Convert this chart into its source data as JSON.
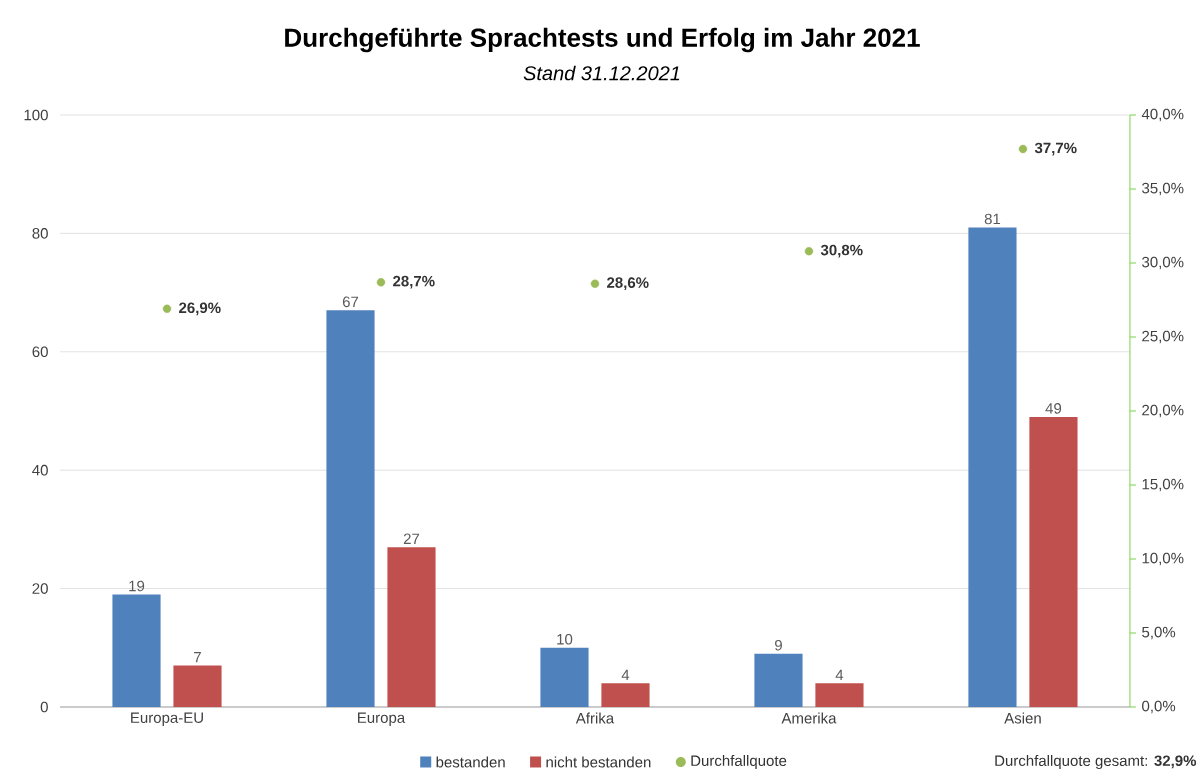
{
  "chart_data": {
    "type": "bar",
    "title": "Durchgeführte Sprachtests und Erfolg im Jahr 2021",
    "subtitle": "Stand 31.12.2021",
    "categories": [
      "Europa-EU",
      "Europa",
      "Afrika",
      "Amerika",
      "Asien"
    ],
    "series": [
      {
        "name": "bestanden",
        "color": "#4f81bd",
        "values": [
          19,
          67,
          10,
          9,
          81
        ],
        "value_labels": [
          "19",
          "67",
          "10",
          "9",
          "81"
        ]
      },
      {
        "name": "nicht bestanden",
        "color": "#c0504d",
        "values": [
          7,
          27,
          4,
          4,
          49
        ],
        "value_labels": [
          "7",
          "27",
          "4",
          "4",
          "49"
        ]
      },
      {
        "name": "Durchfallquote",
        "type": "scatter",
        "axis": "y2",
        "color": "#9bbb59",
        "values": [
          26.9,
          28.7,
          28.6,
          30.8,
          37.7
        ],
        "value_labels": [
          "26,9%",
          "28,7%",
          "28,6%",
          "30,8%",
          "37,7%"
        ]
      }
    ],
    "ylim": [
      0,
      100
    ],
    "yticks": [
      0,
      20,
      40,
      60,
      80,
      100
    ],
    "y2lim": [
      0,
      40
    ],
    "y2ticks": [
      {
        "value": 0,
        "label": "0,0%"
      },
      {
        "value": 5,
        "label": "5,0%"
      },
      {
        "value": 10,
        "label": "10,0%"
      },
      {
        "value": 15,
        "label": "15,0%"
      },
      {
        "value": 20,
        "label": "20,0%"
      },
      {
        "value": 25,
        "label": "25,0%"
      },
      {
        "value": 30,
        "label": "30,0%"
      },
      {
        "value": 35,
        "label": "35,0%"
      },
      {
        "value": 40,
        "label": "40,0%"
      }
    ],
    "grid": "y",
    "legend": "bottom",
    "marker": "circle",
    "annotations": [
      "Durchfallquote gesamt: **32,9%**"
    ]
  }
}
